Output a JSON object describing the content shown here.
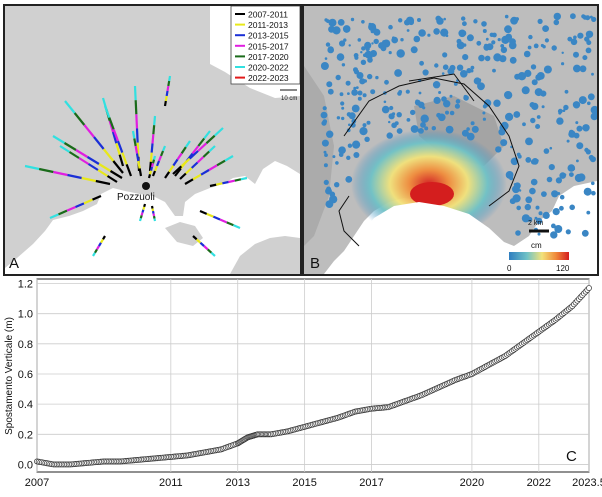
{
  "panel_a": {
    "letter": "A",
    "town_label": "Pozzuoli",
    "scale_label": "10 cm",
    "legend": [
      {
        "label": "2007-2011",
        "color": "#000000"
      },
      {
        "label": "2011-2013",
        "color": "#e8e81a"
      },
      {
        "label": "2013-2015",
        "color": "#1a2fd6"
      },
      {
        "label": "2015-2017",
        "color": "#e01ee0"
      },
      {
        "label": "2017-2020",
        "color": "#1a6b1a"
      },
      {
        "label": "2020-2022",
        "color": "#31e0e0"
      },
      {
        "label": "2022-2023",
        "color": "#e21a1a"
      }
    ]
  },
  "panel_b": {
    "letter": "B",
    "scale_label": "2 km",
    "colorbar": {
      "unit": "cm",
      "min": "0",
      "max": "120",
      "colors": [
        "#2f7ec0",
        "#6fc2c6",
        "#f2e27a",
        "#f08a3a",
        "#d41e1e"
      ]
    }
  },
  "chart_data": {
    "type": "scatter",
    "letter": "C",
    "title": "",
    "xlabel": "",
    "ylabel": "Spostamento Verticale (m)",
    "xlim": [
      2007,
      2023.5
    ],
    "ylim": [
      -0.05,
      1.23
    ],
    "xticks": [
      2007,
      2011,
      2013,
      2015,
      2017,
      2020,
      2022,
      2023.5
    ],
    "xtick_labels": [
      "2007",
      "2011",
      "2013",
      "2015",
      "2017",
      "2020",
      "2022",
      "2023.5"
    ],
    "yticks": [
      0.0,
      0.2,
      0.4,
      0.6,
      0.8,
      1.0,
      1.2
    ],
    "ytick_labels": [
      "0.0",
      "0.2",
      "0.4",
      "0.6",
      "0.8",
      "1.0",
      "1.2"
    ],
    "grid": true,
    "series": [
      {
        "x": [
          2007.0,
          2007.5,
          2008.0,
          2008.5,
          2009.0,
          2009.5,
          2010.0,
          2010.5,
          2011.0,
          2011.5,
          2012.0,
          2012.5,
          2013.0,
          2013.3,
          2013.6,
          2014.0,
          2014.5,
          2015.0,
          2015.5,
          2016.0,
          2016.5,
          2017.0,
          2017.5,
          2018.0,
          2018.5,
          2019.0,
          2019.5,
          2020.0,
          2020.5,
          2021.0,
          2021.5,
          2022.0,
          2022.5,
          2023.0,
          2023.5
        ],
        "y": [
          0.02,
          0.0,
          0.0,
          0.01,
          0.02,
          0.02,
          0.03,
          0.04,
          0.05,
          0.06,
          0.08,
          0.1,
          0.14,
          0.18,
          0.2,
          0.2,
          0.22,
          0.25,
          0.28,
          0.31,
          0.35,
          0.37,
          0.38,
          0.42,
          0.46,
          0.51,
          0.56,
          0.6,
          0.66,
          0.72,
          0.8,
          0.88,
          0.96,
          1.05,
          1.17
        ]
      }
    ]
  }
}
